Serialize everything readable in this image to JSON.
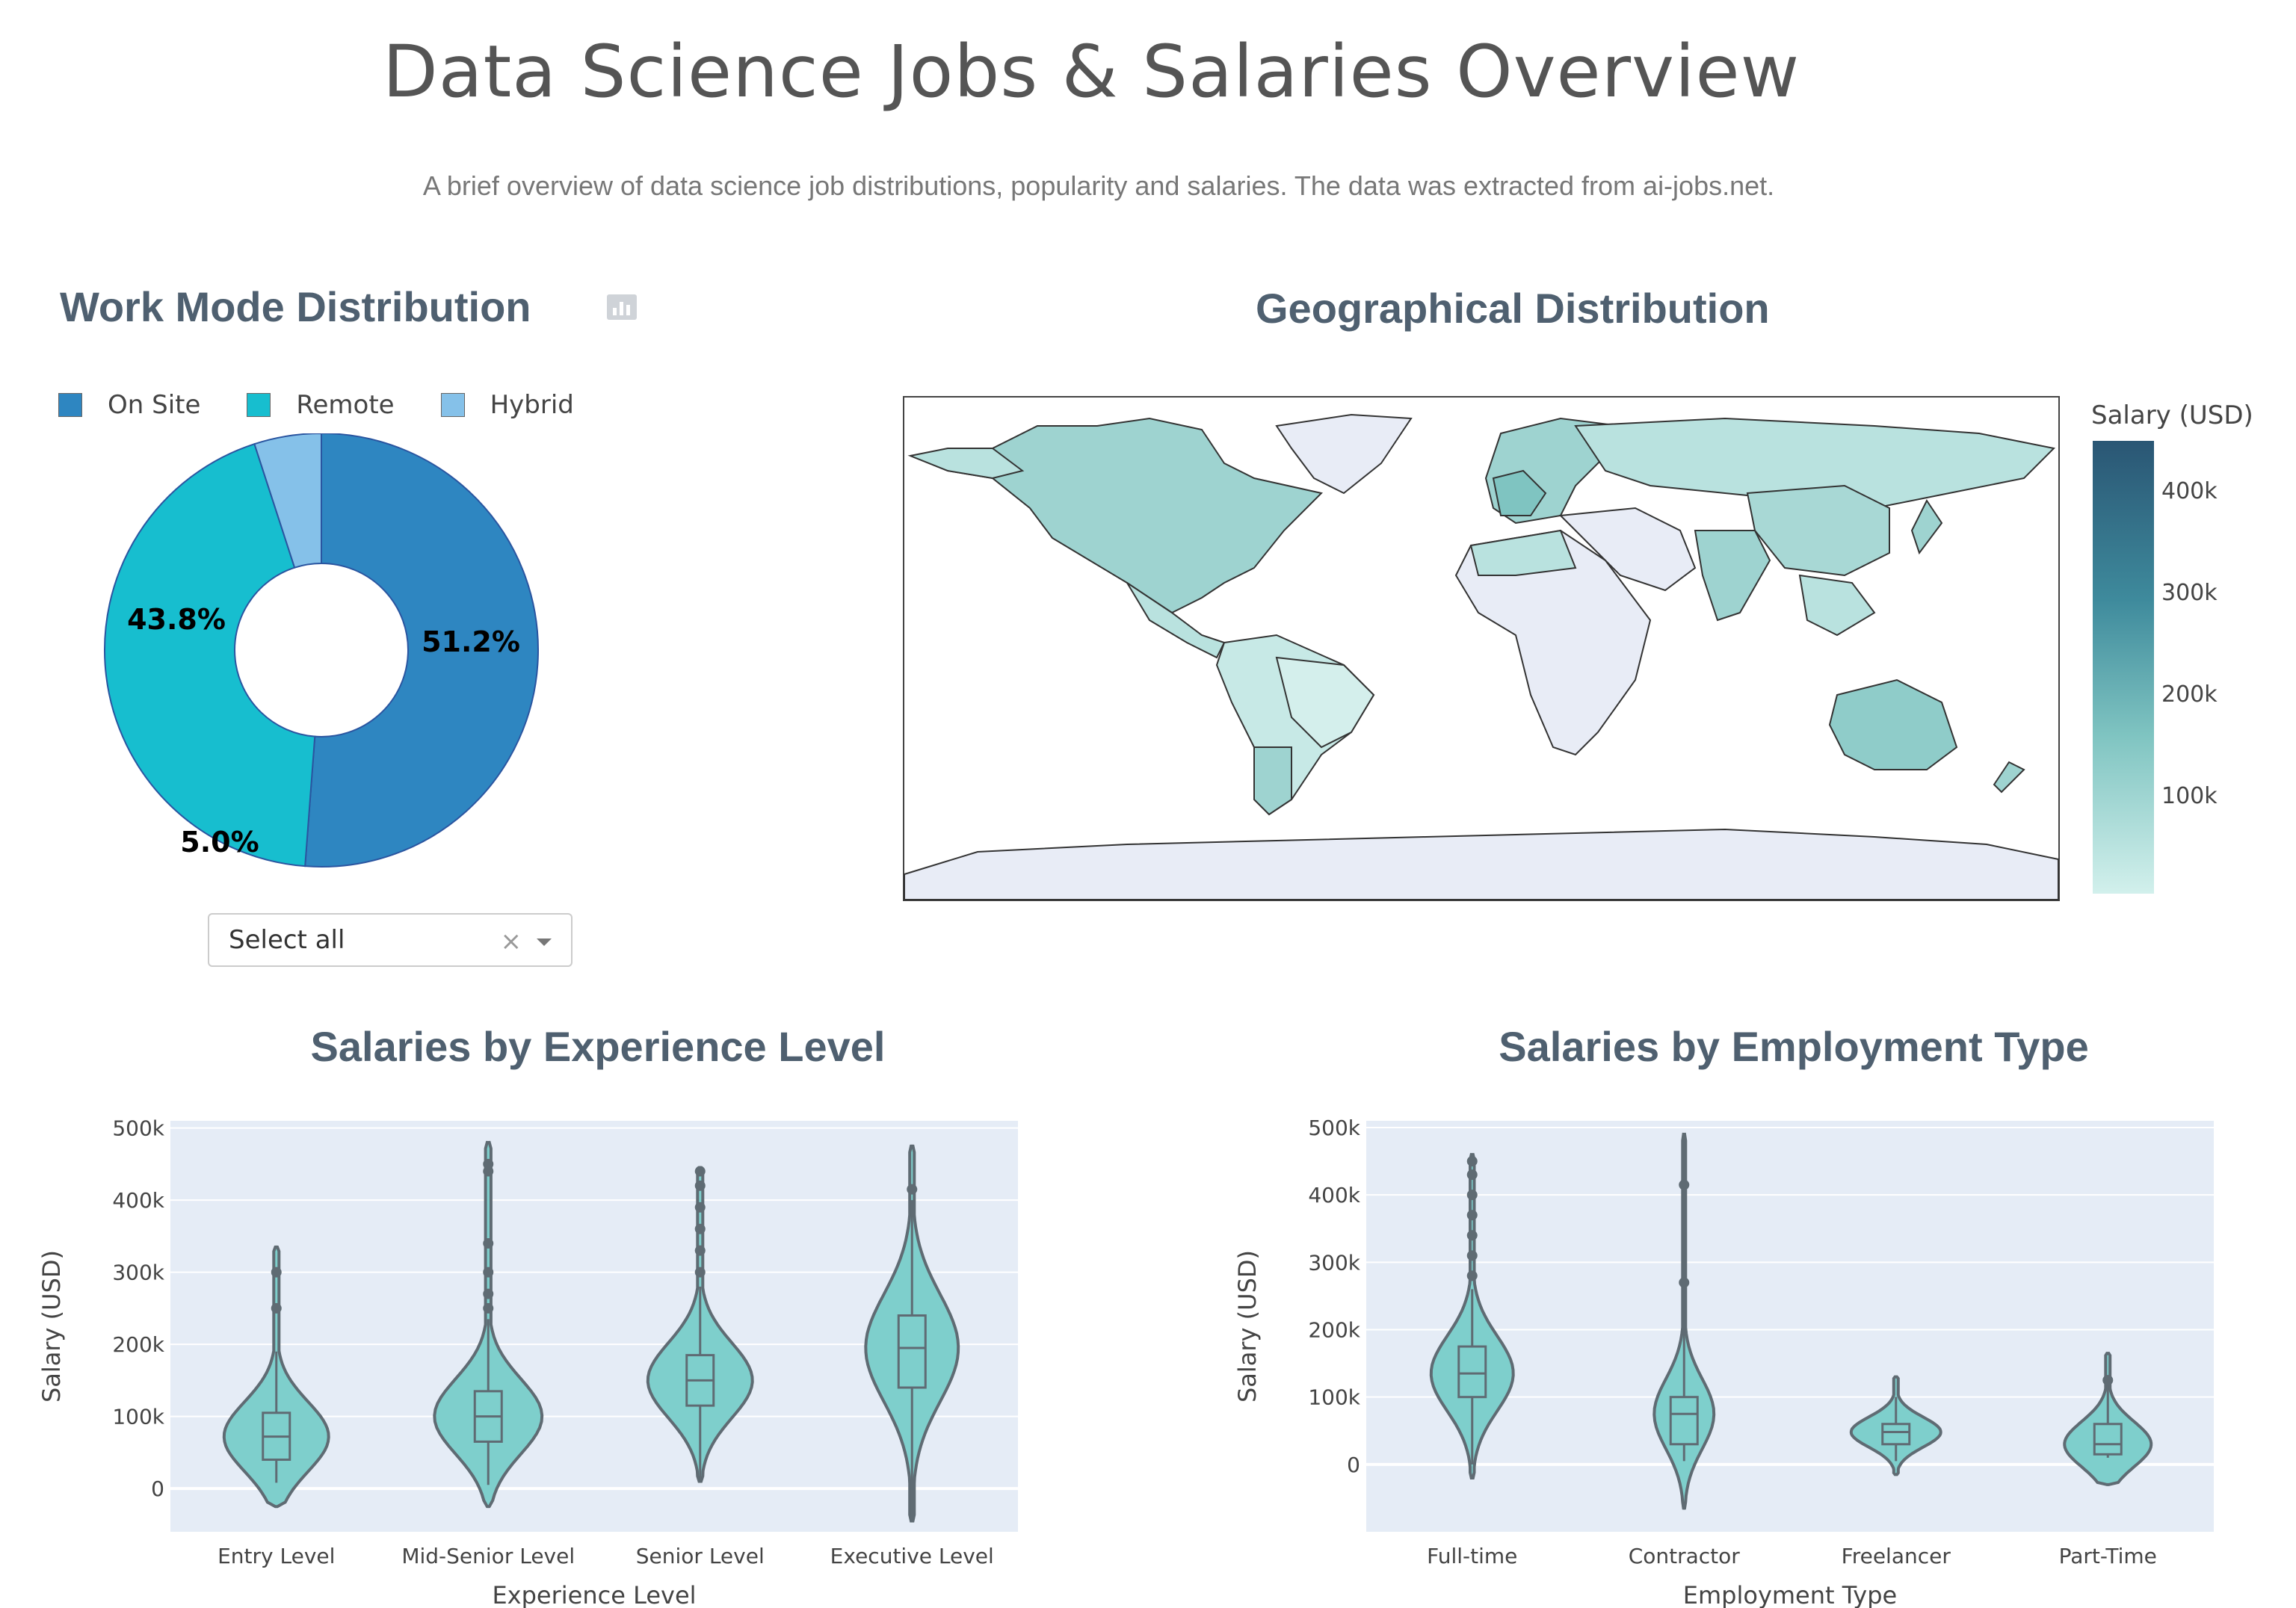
{
  "header": {
    "title": "Data Science Jobs & Salaries Overview",
    "subtitle": "A brief overview of data science job distributions, popularity and salaries. The data was extracted from ai-jobs.net."
  },
  "work_mode": {
    "title": "Work Mode Distribution",
    "legend": [
      {
        "label": "On Site",
        "color": "#2e86c1"
      },
      {
        "label": "Remote",
        "color": "#17becf"
      },
      {
        "label": "Hybrid",
        "color": "#85c1e9"
      }
    ],
    "dropdown": {
      "value": "Select all",
      "clear_symbol": "×"
    }
  },
  "geo": {
    "title": "Geographical Distribution",
    "colorbar_title": "Salary (USD)",
    "colorbar_ticks": [
      "400k",
      "300k",
      "200k",
      "100k"
    ]
  },
  "experience": {
    "title": "Salaries by Experience Level"
  },
  "employment": {
    "title": "Salaries by Employment Type"
  },
  "chart_data": [
    {
      "type": "pie",
      "title": "Work Mode Distribution",
      "hole": 0.4,
      "labels": [
        "On Site",
        "Remote",
        "Hybrid"
      ],
      "values": [
        51.2,
        43.8,
        5.0
      ],
      "value_labels": [
        "51.2%",
        "43.8%",
        "5.0%"
      ],
      "colors": [
        "#2e86c1",
        "#17becf",
        "#85c1e9"
      ],
      "legend": "top"
    },
    {
      "type": "choropleth",
      "title": "Geographical Distribution",
      "colorbar": {
        "title": "Salary (USD)",
        "range": [
          0,
          450000
        ],
        "ticks": [
          100000,
          200000,
          300000,
          400000
        ]
      }
    },
    {
      "type": "violin",
      "title": "Salaries by Experience Level",
      "xlabel": "Experience Level",
      "ylabel": "Salary (USD)",
      "ylim": [
        -60000,
        510000
      ],
      "yticks": [
        0,
        100000,
        200000,
        300000,
        400000,
        500000
      ],
      "ytick_labels": [
        "0",
        "100k",
        "200k",
        "300k",
        "400k",
        "500k"
      ],
      "color": "#7ecfcc",
      "categories": [
        "Entry Level",
        "Mid-Senior Level",
        "Senior Level",
        "Executive Level"
      ],
      "series": [
        {
          "name": "Entry Level",
          "min": -25000,
          "max": 335000,
          "q1": 40000,
          "median": 72000,
          "q3": 105000,
          "whisker_low": 8000,
          "whisker_high": 190000,
          "outliers": [
            250000,
            300000
          ],
          "width": 70
        },
        {
          "name": "Mid-Senior Level",
          "min": -25000,
          "max": 480000,
          "q1": 65000,
          "median": 100000,
          "q3": 135000,
          "whisker_low": 5000,
          "whisker_high": 235000,
          "outliers": [
            250000,
            270000,
            300000,
            340000,
            440000,
            450000
          ],
          "width": 72
        },
        {
          "name": "Senior Level",
          "min": 10000,
          "max": 445000,
          "q1": 115000,
          "median": 150000,
          "q3": 185000,
          "whisker_low": 10000,
          "whisker_high": 280000,
          "outliers": [
            300000,
            330000,
            360000,
            390000,
            420000,
            440000
          ],
          "width": 70
        },
        {
          "name": "Executive Level",
          "min": -45000,
          "max": 475000,
          "q1": 140000,
          "median": 195000,
          "q3": 240000,
          "whisker_low": -45000,
          "whisker_high": 400000,
          "outliers": [
            415000
          ],
          "width": 62
        }
      ]
    },
    {
      "type": "violin",
      "title": "Salaries by Employment Type",
      "xlabel": "Employment Type",
      "ylabel": "Salary (USD)",
      "ylim": [
        -100000,
        510000
      ],
      "yticks": [
        0,
        100000,
        200000,
        300000,
        400000,
        500000
      ],
      "ytick_labels": [
        "0",
        "100k",
        "200k",
        "300k",
        "400k",
        "500k"
      ],
      "color": "#7ecfcc",
      "categories": [
        "Full-time",
        "Contractor",
        "Freelancer",
        "Part-Time"
      ],
      "series": [
        {
          "name": "Full-time",
          "min": -20000,
          "max": 460000,
          "q1": 100000,
          "median": 135000,
          "q3": 175000,
          "whisker_low": 0,
          "whisker_high": 260000,
          "outliers": [
            280000,
            310000,
            340000,
            370000,
            400000,
            430000,
            450000
          ],
          "width": 55
        },
        {
          "name": "Contractor",
          "min": -65000,
          "max": 490000,
          "q1": 30000,
          "median": 75000,
          "q3": 100000,
          "whisker_low": 5000,
          "whisker_high": 420000,
          "outliers": [
            270000,
            415000
          ],
          "width": 40
        },
        {
          "name": "Freelancer",
          "min": -15000,
          "max": 130000,
          "q1": 30000,
          "median": 48000,
          "q3": 60000,
          "whisker_low": 5000,
          "whisker_high": 100000,
          "outliers": [],
          "width": 60
        },
        {
          "name": "Part-Time",
          "min": -30000,
          "max": 165000,
          "q1": 15000,
          "median": 30000,
          "q3": 60000,
          "whisker_low": 10000,
          "whisker_high": 125000,
          "outliers": [
            125000
          ],
          "width": 58
        }
      ]
    }
  ]
}
